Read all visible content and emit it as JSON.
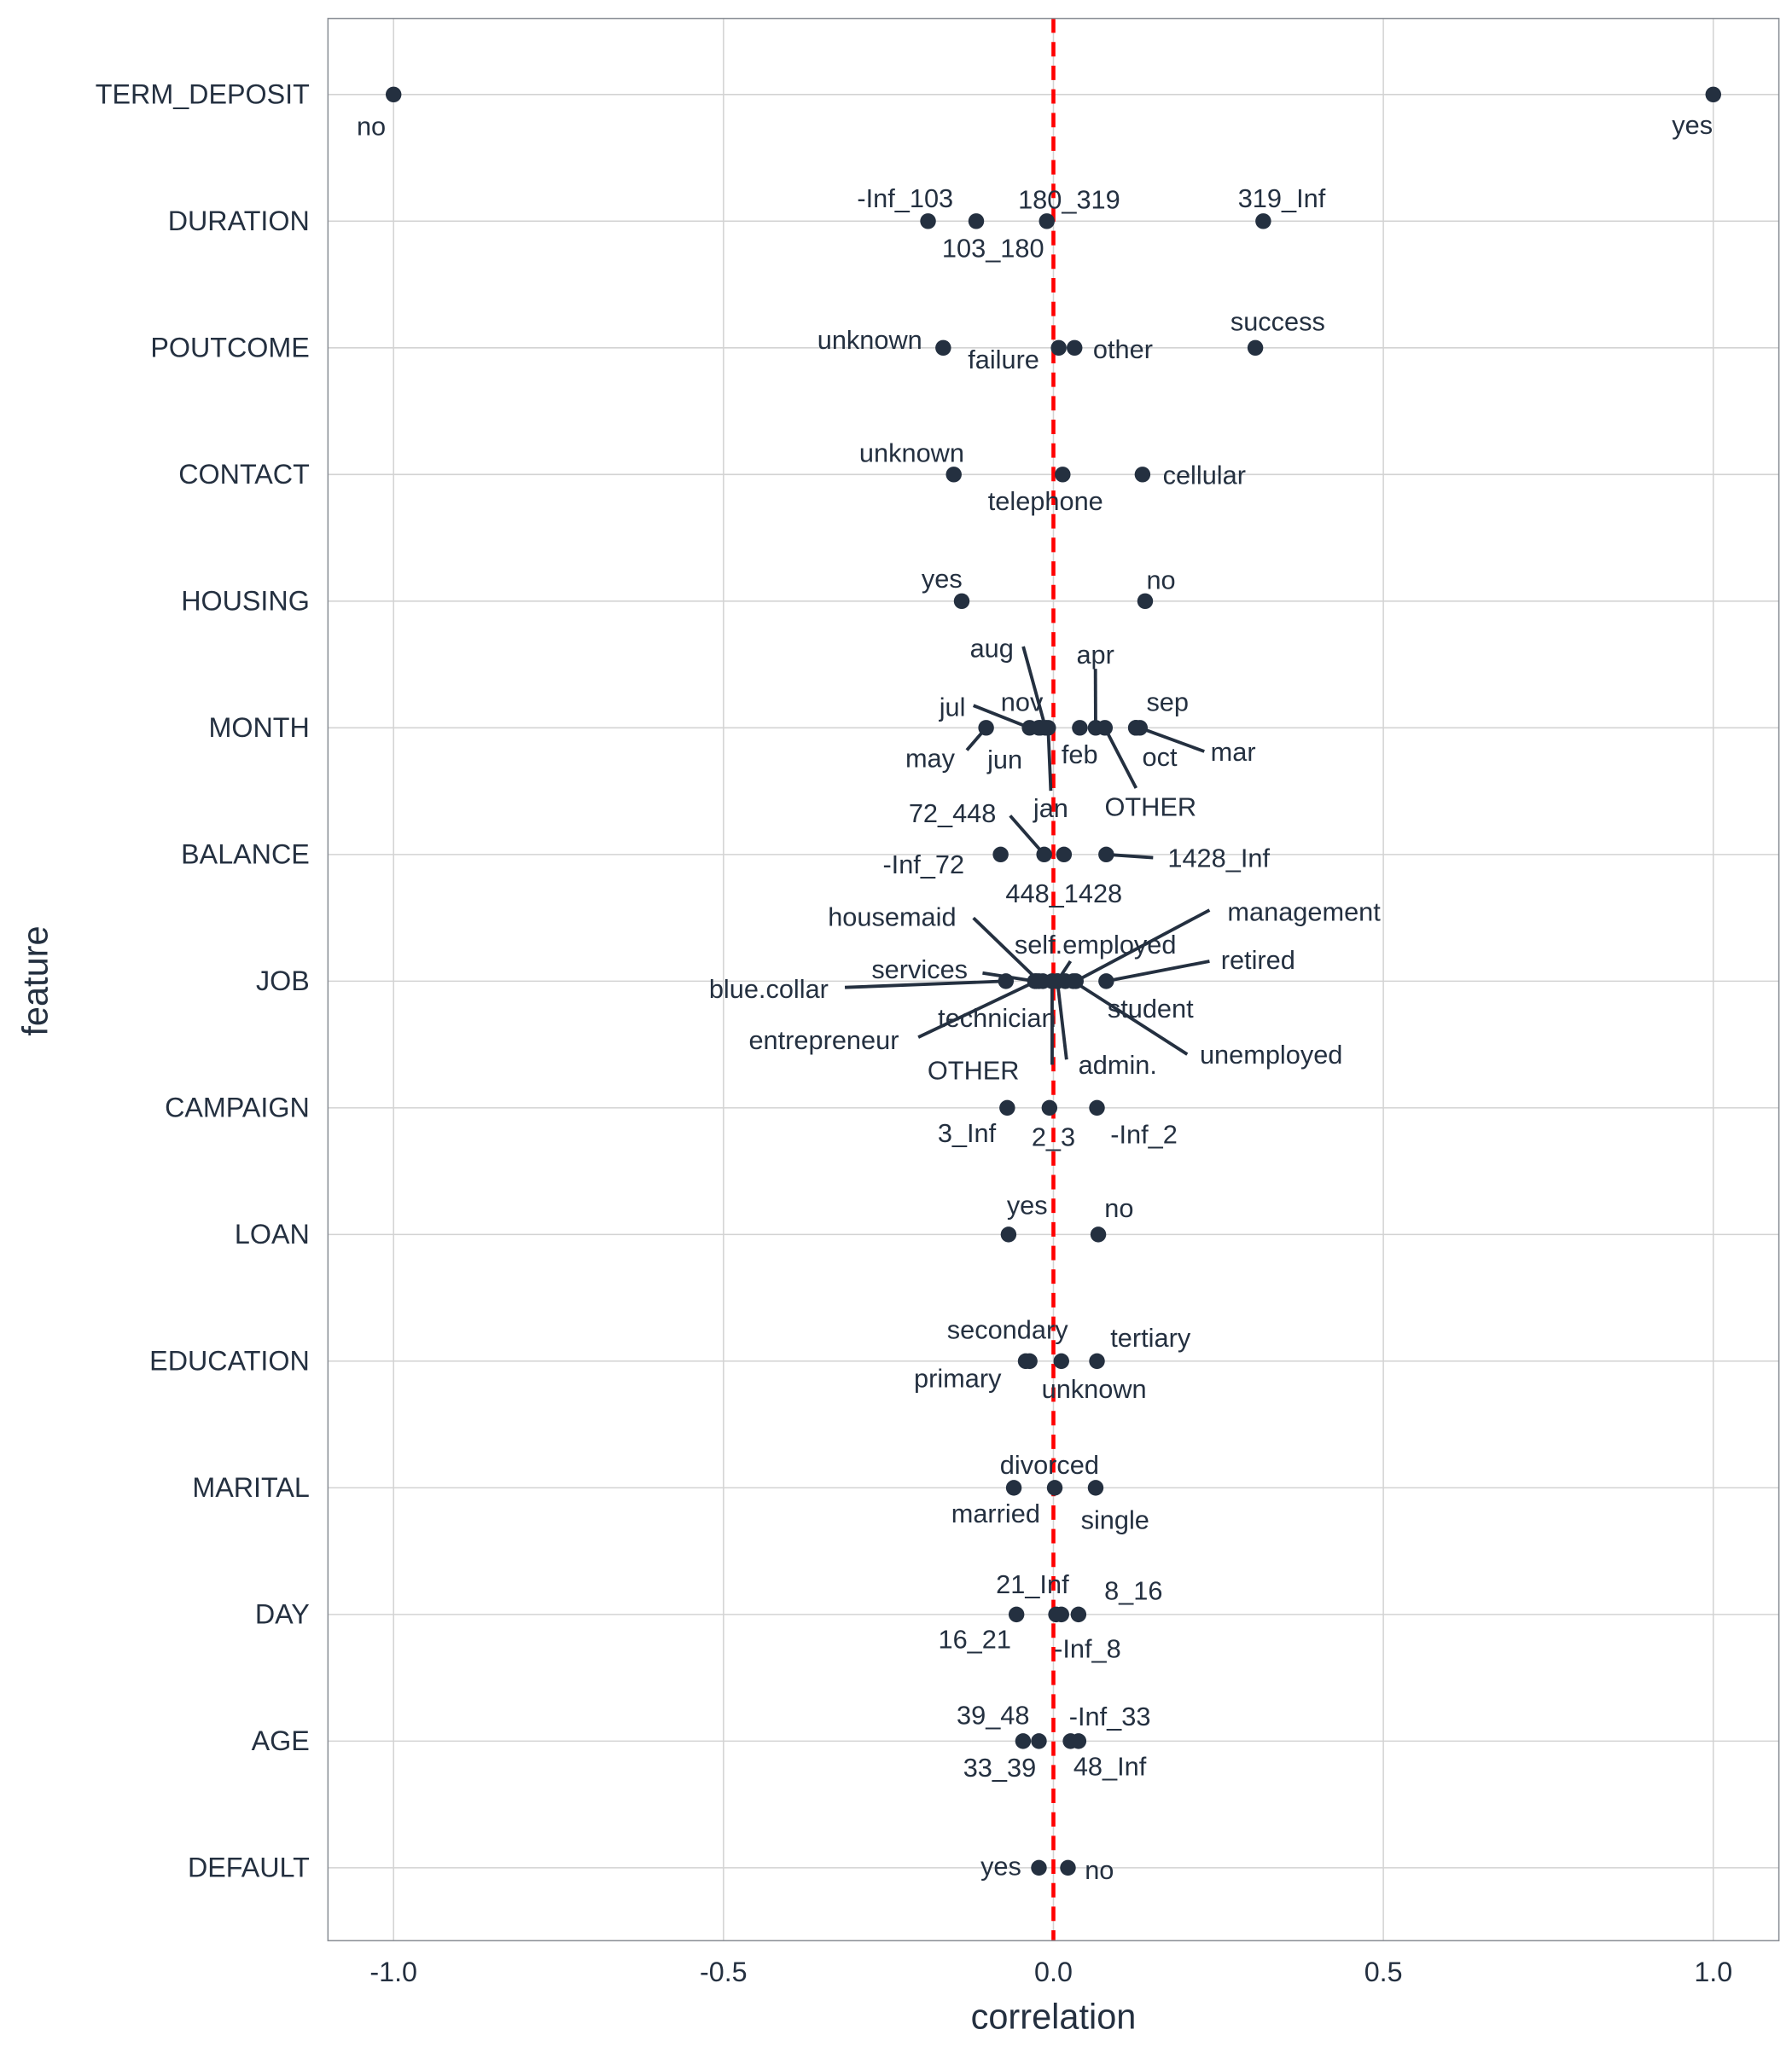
{
  "chart_data": {
    "type": "scatter",
    "xlabel": "correlation",
    "ylabel": "feature",
    "xlim": [
      -1.1,
      1.1
    ],
    "x_ticks": [
      "-1.0",
      "-0.5",
      "0.0",
      "0.5",
      "1.0"
    ],
    "x_tick_values": [
      -1.0,
      -0.5,
      0.0,
      0.5,
      1.0
    ],
    "grid": true,
    "reference_line": {
      "x": 0,
      "color": "#ff0000",
      "style": "dashed"
    },
    "point_color": "#243040",
    "categories": [
      "TERM_DEPOSIT",
      "DURATION",
      "POUTCOME",
      "CONTACT",
      "HOUSING",
      "MONTH",
      "BALANCE",
      "JOB",
      "CAMPAIGN",
      "LOAN",
      "EDUCATION",
      "MARITAL",
      "DAY",
      "AGE",
      "DEFAULT"
    ],
    "series": [
      {
        "feature": "TERM_DEPOSIT",
        "points": [
          {
            "label": "no",
            "x": -1.0
          },
          {
            "label": "yes",
            "x": 1.0
          }
        ]
      },
      {
        "feature": "DURATION",
        "points": [
          {
            "label": "-Inf_103",
            "x": -0.19
          },
          {
            "label": "103_180",
            "x": -0.117
          },
          {
            "label": "180_319",
            "x": -0.01
          },
          {
            "label": "319_Inf",
            "x": 0.318
          }
        ]
      },
      {
        "feature": "POUTCOME",
        "points": [
          {
            "label": "unknown",
            "x": -0.167
          },
          {
            "label": "failure",
            "x": 0.008
          },
          {
            "label": "other",
            "x": 0.032
          },
          {
            "label": "success",
            "x": 0.306
          }
        ]
      },
      {
        "feature": "CONTACT",
        "points": [
          {
            "label": "unknown",
            "x": -0.151
          },
          {
            "label": "telephone",
            "x": 0.014
          },
          {
            "label": "cellular",
            "x": 0.135
          }
        ]
      },
      {
        "feature": "HOUSING",
        "points": [
          {
            "label": "yes",
            "x": -0.139
          },
          {
            "label": "no",
            "x": 0.139
          }
        ]
      },
      {
        "feature": "MONTH",
        "points": [
          {
            "label": "aug",
            "x": -0.012
          },
          {
            "label": "apr",
            "x": 0.064
          },
          {
            "label": "jul",
            "x": -0.036
          },
          {
            "label": "nov",
            "x": -0.022
          },
          {
            "label": "sep",
            "x": 0.125
          },
          {
            "label": "may",
            "x": -0.102
          },
          {
            "label": "jun",
            "x": -0.02
          },
          {
            "label": "feb",
            "x": 0.04
          },
          {
            "label": "oct",
            "x": 0.125
          },
          {
            "label": "mar",
            "x": 0.131
          },
          {
            "label": "OTHER",
            "x": 0.078
          },
          {
            "label": "jan",
            "x": -0.008
          }
        ]
      },
      {
        "feature": "BALANCE",
        "points": [
          {
            "label": "72_448",
            "x": -0.014
          },
          {
            "label": "-Inf_72",
            "x": -0.08
          },
          {
            "label": "448_1428",
            "x": 0.016
          },
          {
            "label": "1428_Inf",
            "x": 0.08
          }
        ]
      },
      {
        "feature": "JOB",
        "points": [
          {
            "label": "housemaid",
            "x": -0.022
          },
          {
            "label": "management",
            "x": 0.034
          },
          {
            "label": "self.employed",
            "x": 0.006
          },
          {
            "label": "services",
            "x": -0.028
          },
          {
            "label": "retired",
            "x": 0.08
          },
          {
            "label": "blue.collar",
            "x": -0.072
          },
          {
            "label": "student",
            "x": 0.018
          },
          {
            "label": "technician",
            "x": -0.016
          },
          {
            "label": "entrepreneur",
            "x": -0.026
          },
          {
            "label": "unemployed",
            "x": 0.03
          },
          {
            "label": "OTHER",
            "x": -0.002
          },
          {
            "label": "admin.",
            "x": 0.006
          }
        ]
      },
      {
        "feature": "CAMPAIGN",
        "points": [
          {
            "label": "3_Inf",
            "x": -0.07
          },
          {
            "label": "2_3",
            "x": -0.006
          },
          {
            "label": "-Inf_2",
            "x": 0.066
          }
        ]
      },
      {
        "feature": "LOAN",
        "points": [
          {
            "label": "yes",
            "x": -0.068
          },
          {
            "label": "no",
            "x": 0.068
          }
        ]
      },
      {
        "feature": "EDUCATION",
        "points": [
          {
            "label": "secondary",
            "x": -0.036
          },
          {
            "label": "tertiary",
            "x": 0.066
          },
          {
            "label": "primary",
            "x": -0.042
          },
          {
            "label": "unknown",
            "x": 0.012
          }
        ]
      },
      {
        "feature": "MARITAL",
        "points": [
          {
            "label": "divorced",
            "x": 0.002
          },
          {
            "label": "married",
            "x": -0.06
          },
          {
            "label": "single",
            "x": 0.064
          }
        ]
      },
      {
        "feature": "DAY",
        "points": [
          {
            "label": "21_Inf",
            "x": 0.004
          },
          {
            "label": "8_16",
            "x": 0.038
          },
          {
            "label": "16_21",
            "x": -0.056
          },
          {
            "label": "-Inf_8",
            "x": 0.012
          }
        ]
      },
      {
        "feature": "AGE",
        "points": [
          {
            "label": "39_48",
            "x": -0.046
          },
          {
            "label": "-Inf_33",
            "x": 0.026
          },
          {
            "label": "33_39",
            "x": -0.022
          },
          {
            "label": "48_Inf",
            "x": 0.038
          }
        ]
      },
      {
        "feature": "DEFAULT",
        "points": [
          {
            "label": "yes",
            "x": -0.022
          },
          {
            "label": "no",
            "x": 0.022
          }
        ]
      }
    ]
  }
}
